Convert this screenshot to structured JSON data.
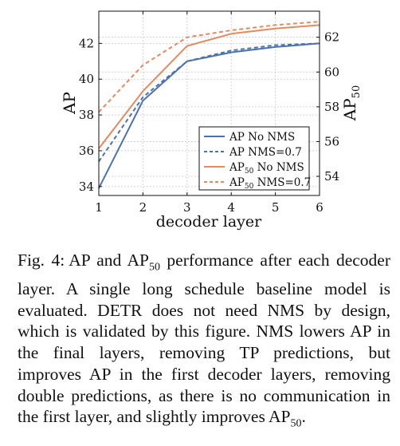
{
  "chart_data": {
    "type": "line",
    "x": [
      1,
      2,
      3,
      4,
      5,
      6
    ],
    "xlabel": "decoder layer",
    "ylabel_left": "AP",
    "ylabel_right": "AP",
    "ylabel_right_sub": "50",
    "ylim_left": [
      33.5,
      43.8
    ],
    "yticks_left": [
      34,
      36,
      38,
      40,
      42
    ],
    "ylim_right": [
      52.9,
      63.5
    ],
    "yticks_right": [
      54,
      56,
      58,
      60,
      62
    ],
    "xticks": [
      1,
      2,
      3,
      4,
      5,
      6
    ],
    "grid": true,
    "legend_position": "bottom-right",
    "series": [
      {
        "name": "AP No NMS",
        "name_main": "AP",
        "name_sub": "",
        "name_rest": " No NMS",
        "axis": "left",
        "color": "#4a72b0",
        "dashed": false,
        "values": [
          33.9,
          38.8,
          41.0,
          41.5,
          41.8,
          42.0
        ]
      },
      {
        "name": "AP NMS=0.7",
        "name_main": "AP",
        "name_sub": "",
        "name_rest": " NMS=0.7",
        "axis": "left",
        "color": "#4a72b0",
        "dashed": true,
        "values": [
          35.4,
          39.0,
          41.0,
          41.6,
          41.9,
          42.0
        ]
      },
      {
        "name": "AP50 No NMS",
        "name_main": "AP",
        "name_sub": "50",
        "name_rest": " No NMS",
        "axis": "right",
        "color": "#e58a5f",
        "dashed": false,
        "values": [
          55.6,
          58.9,
          61.5,
          62.2,
          62.5,
          62.7
        ]
      },
      {
        "name": "AP50 NMS=0.7",
        "name_main": "AP",
        "name_sub": "50",
        "name_rest": " NMS=0.7",
        "axis": "right",
        "color": "#e58a5f",
        "dashed": true,
        "values": [
          57.7,
          60.4,
          62.0,
          62.4,
          62.7,
          62.9
        ]
      }
    ]
  },
  "caption": {
    "label": "Fig. 4:",
    "text_before": "AP and AP",
    "text_sub": "50",
    "text_main": " performance after each decoder layer. A single long schedule baseline model is evaluated. DETR does not need NMS by design, which is validated by this figure. NMS lowers AP in the final layers, removing TP predictions, but improves AP in the first decoder layers, removing double predictions, as there is no communication in the first layer, and slightly improves AP",
    "text_end_sub": "50",
    "text_end": "."
  }
}
